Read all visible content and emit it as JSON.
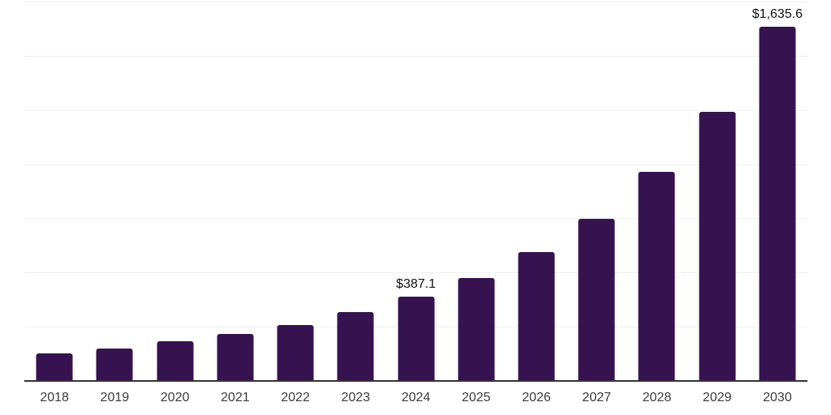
{
  "chart_data": {
    "type": "bar",
    "title": "",
    "xlabel": "",
    "ylabel": "",
    "categories": [
      "2018",
      "2019",
      "2020",
      "2021",
      "2022",
      "2023",
      "2024",
      "2025",
      "2026",
      "2027",
      "2028",
      "2029",
      "2030"
    ],
    "values": [
      126.5,
      150.5,
      182.5,
      216.0,
      257.0,
      316.5,
      387.1,
      474.0,
      593.0,
      749.0,
      963.0,
      1242.0,
      1635.6
    ],
    "data_labels": [
      "",
      "",
      "",
      "",
      "",
      "",
      "$387.1",
      "",
      "",
      "",
      "",
      "",
      "$1,635.6"
    ],
    "ylim": [
      0,
      1750
    ],
    "gridline_step": 250,
    "grid": true,
    "legend": false,
    "colors": {
      "bar": "#371250",
      "gridline": "#f0f0f0",
      "axis_line": "#333333",
      "tick_label": "#3b3b3b",
      "data_label": "#111111",
      "background": "#ffffff"
    }
  }
}
